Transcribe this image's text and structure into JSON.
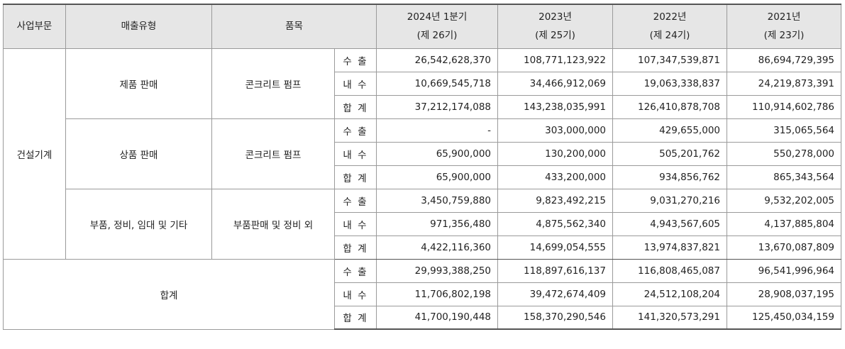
{
  "headers": {
    "division": "사업부문",
    "sales_type": "매출유형",
    "item": "품목",
    "periods": [
      {
        "year": "2024년 1분기",
        "term": "(제 26기)"
      },
      {
        "year": "2023년",
        "term": "(제 25기)"
      },
      {
        "year": "2022년",
        "term": "(제 24기)"
      },
      {
        "year": "2021년",
        "term": "(제 23기)"
      }
    ]
  },
  "division_name": "건설기계",
  "groups": [
    {
      "sales_type": "제품 판매",
      "item": "콘크리트 펌프",
      "rows": [
        {
          "kind": "수 출",
          "values": [
            "26,542,628,370",
            "108,771,123,922",
            "107,347,539,871",
            "86,694,729,395"
          ]
        },
        {
          "kind": "내 수",
          "values": [
            "10,669,545,718",
            "34,466,912,069",
            "19,063,338,837",
            "24,219,873,391"
          ]
        },
        {
          "kind": "합 계",
          "values": [
            "37,212,174,088",
            "143,238,035,991",
            "126,410,878,708",
            "110,914,602,786"
          ]
        }
      ]
    },
    {
      "sales_type": "상품 판매",
      "item": "콘크리트 펌프",
      "rows": [
        {
          "kind": "수 출",
          "values": [
            "-",
            "303,000,000",
            "429,655,000",
            "315,065,564"
          ]
        },
        {
          "kind": "내 수",
          "values": [
            "65,900,000",
            "130,200,000",
            "505,201,762",
            "550,278,000"
          ]
        },
        {
          "kind": "합 계",
          "values": [
            "65,900,000",
            "433,200,000",
            "934,856,762",
            "865,343,564"
          ]
        }
      ]
    },
    {
      "sales_type": "부품, 정비, 임대 및 기타",
      "item": "부품판매 및 정비 외",
      "rows": [
        {
          "kind": "수 출",
          "values": [
            "3,450,759,880",
            "9,823,492,215",
            "9,031,270,216",
            "9,532,202,005"
          ]
        },
        {
          "kind": "내 수",
          "values": [
            "971,356,480",
            "4,875,562,340",
            "4,943,567,605",
            "4,137,885,804"
          ]
        },
        {
          "kind": "합 계",
          "values": [
            "4,422,116,360",
            "14,699,054,555",
            "13,974,837,821",
            "13,670,087,809"
          ]
        }
      ]
    }
  ],
  "total": {
    "label": "합계",
    "rows": [
      {
        "kind": "수 출",
        "values": [
          "29,993,388,250",
          "118,897,616,137",
          "116,808,465,087",
          "96,541,996,964"
        ]
      },
      {
        "kind": "내 수",
        "values": [
          "11,706,802,198",
          "39,472,674,409",
          "24,512,108,204",
          "28,908,037,195"
        ]
      },
      {
        "kind": "합 계",
        "values": [
          "41,700,190,448",
          "158,370,290,546",
          "141,320,573,291",
          "125,450,034,159"
        ]
      }
    ]
  }
}
